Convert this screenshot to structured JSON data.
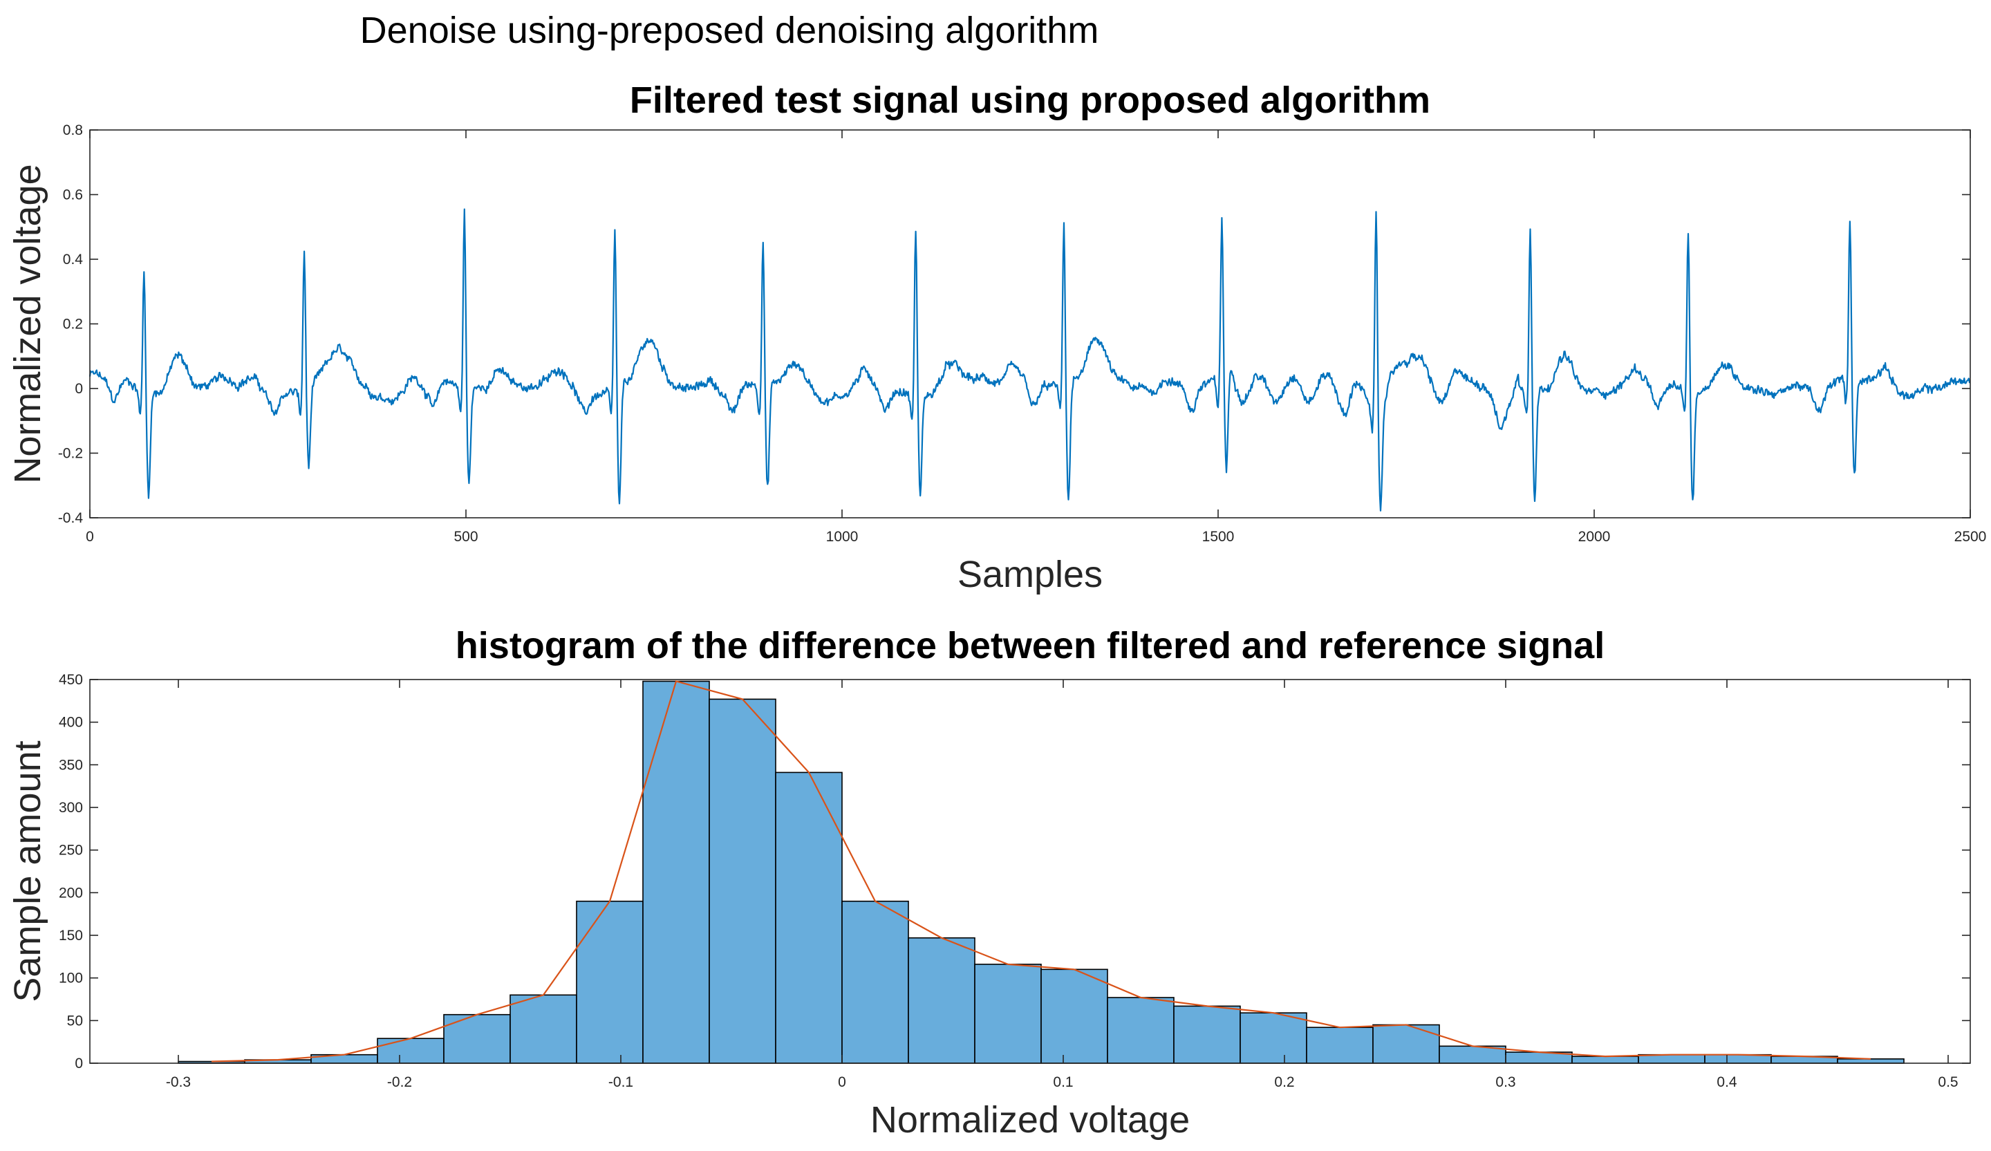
{
  "figure": {
    "suptitle": "Denoise using-preposed denoising algorithm"
  },
  "colors": {
    "signal_line": "#0072bd",
    "histogram_bar": "#4d9fd6",
    "fit_line": "#d95319"
  },
  "chart_data": [
    {
      "type": "line",
      "title": "Filtered test signal using proposed algorithm",
      "xlabel": "Samples",
      "ylabel": "Normalized voltage",
      "xlim": [
        0,
        2500
      ],
      "ylim": [
        -0.4,
        0.8
      ],
      "xticks": [
        0,
        500,
        1000,
        1500,
        2000,
        2500
      ],
      "yticks": [
        -0.4,
        -0.2,
        0,
        0.2,
        0.4,
        0.6,
        0.8
      ],
      "xtick_labels": [
        "0",
        "500",
        "1000",
        "1500",
        "2000",
        "2500"
      ],
      "ytick_labels": [
        "-0.4",
        "-0.2",
        "0",
        "0.2",
        "0.4",
        "0.6",
        "0.8"
      ],
      "grid": false,
      "series": [
        {
          "approximate": "ECG-like trace with 12 R-peaks",
          "beats": [
            {
              "x": 72,
              "r": 0.38,
              "s": -0.32
            },
            {
              "x": 285,
              "r": 0.43,
              "s": -0.25
            },
            {
              "x": 498,
              "r": 0.55,
              "s": -0.3
            },
            {
              "x": 698,
              "r": 0.49,
              "s": -0.37
            },
            {
              "x": 895,
              "r": 0.47,
              "s": -0.32
            },
            {
              "x": 1098,
              "r": 0.53,
              "s": -0.31
            },
            {
              "x": 1295,
              "r": 0.49,
              "s": -0.36
            },
            {
              "x": 1505,
              "r": 0.48,
              "s": -0.32
            },
            {
              "x": 1710,
              "r": 0.63,
              "s": -0.32
            },
            {
              "x": 1915,
              "r": 0.52,
              "s": -0.33
            },
            {
              "x": 2125,
              "r": 0.5,
              "s": -0.34
            },
            {
              "x": 2340,
              "r": 0.51,
              "s": -0.29
            }
          ],
          "x_end": 2500
        }
      ]
    },
    {
      "type": "bar",
      "title": "histogram of the difference between filtered and reference signal",
      "xlabel": "Normalized voltage",
      "ylabel": "Sample amount",
      "xlim": [
        -0.34,
        0.51
      ],
      "ylim": [
        0,
        450
      ],
      "xticks": [
        -0.3,
        -0.2,
        -0.1,
        0,
        0.1,
        0.2,
        0.3,
        0.4,
        0.5
      ],
      "yticks": [
        0,
        50,
        100,
        150,
        200,
        250,
        300,
        350,
        400,
        450
      ],
      "xtick_labels": [
        "-0.3",
        "-0.2",
        "-0.1",
        "0",
        "0.1",
        "0.2",
        "0.3",
        "0.4",
        "0.5"
      ],
      "ytick_labels": [
        "0",
        "50",
        "100",
        "150",
        "200",
        "250",
        "300",
        "350",
        "400",
        "450"
      ],
      "grid": false,
      "bin_edges": [
        -0.3,
        -0.27,
        -0.24,
        -0.21,
        -0.18,
        -0.15,
        -0.12,
        -0.09,
        -0.06,
        -0.03,
        0.0,
        0.03,
        0.06,
        0.09,
        0.12,
        0.15,
        0.18,
        0.21,
        0.24,
        0.27,
        0.3,
        0.33,
        0.36,
        0.39,
        0.42,
        0.45,
        0.48
      ],
      "counts": [
        2,
        4,
        10,
        29,
        57,
        80,
        190,
        448,
        427,
        341,
        190,
        147,
        116,
        110,
        77,
        67,
        59,
        42,
        45,
        20,
        13,
        8,
        10,
        10,
        8,
        5
      ],
      "fit_line": {
        "x": [
          -0.285,
          -0.255,
          -0.225,
          -0.195,
          -0.165,
          -0.135,
          -0.105,
          -0.075,
          -0.045,
          -0.015,
          0.015,
          0.045,
          0.075,
          0.105,
          0.135,
          0.165,
          0.195,
          0.225,
          0.255,
          0.285,
          0.315,
          0.345,
          0.375,
          0.405,
          0.435,
          0.465
        ],
        "y": [
          2,
          4,
          10,
          29,
          57,
          80,
          190,
          448,
          427,
          341,
          190,
          147,
          116,
          110,
          77,
          67,
          59,
          42,
          45,
          20,
          13,
          8,
          10,
          10,
          8,
          5
        ]
      }
    }
  ]
}
